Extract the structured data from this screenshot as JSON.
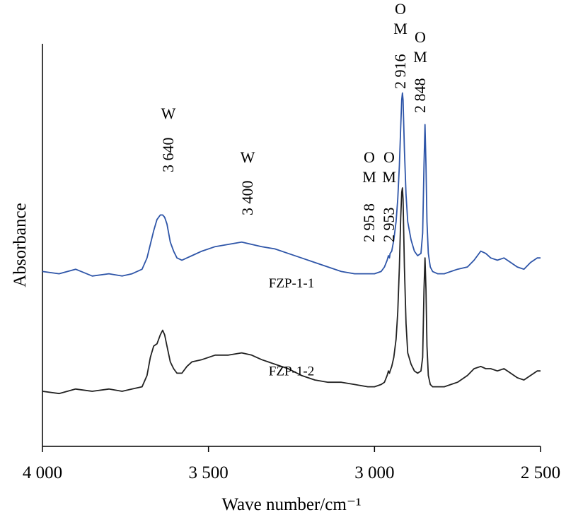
{
  "chart_data": {
    "type": "line",
    "title": "",
    "xlabel": "Wave number/cm⁻¹",
    "ylabel": "Absorbance",
    "x_reversed": true,
    "xlim": [
      4000,
      2500
    ],
    "x_ticks": [
      4000,
      3500,
      3000,
      2500
    ],
    "x_tick_labels": [
      "4 000",
      "3 500",
      "3 000",
      "2 500"
    ],
    "grid": false,
    "legend": "none",
    "series": [
      {
        "name": "FZP-1-1",
        "color": "#2e55a8",
        "x": [
          4000,
          3950,
          3900,
          3850,
          3800,
          3760,
          3730,
          3700,
          3685,
          3675,
          3665,
          3655,
          3645,
          3638,
          3632,
          3625,
          3615,
          3605,
          3595,
          3580,
          3565,
          3550,
          3520,
          3480,
          3440,
          3400,
          3370,
          3340,
          3300,
          3260,
          3220,
          3180,
          3140,
          3100,
          3060,
          3020,
          3000,
          2980,
          2970,
          2962,
          2958,
          2955,
          2953,
          2948,
          2942,
          2935,
          2930,
          2925,
          2921,
          2918,
          2916,
          2914,
          2910,
          2905,
          2900,
          2890,
          2880,
          2870,
          2860,
          2855,
          2851,
          2848,
          2845,
          2842,
          2838,
          2832,
          2825,
          2810,
          2790,
          2770,
          2750,
          2720,
          2700,
          2680,
          2665,
          2650,
          2630,
          2610,
          2590,
          2570,
          2550,
          2530,
          2510,
          2500
        ],
        "y": [
          0.08,
          0.07,
          0.09,
          0.06,
          0.07,
          0.06,
          0.07,
          0.09,
          0.14,
          0.2,
          0.26,
          0.31,
          0.33,
          0.33,
          0.32,
          0.29,
          0.21,
          0.17,
          0.14,
          0.13,
          0.14,
          0.15,
          0.17,
          0.19,
          0.2,
          0.21,
          0.2,
          0.19,
          0.18,
          0.16,
          0.14,
          0.12,
          0.1,
          0.08,
          0.07,
          0.07,
          0.07,
          0.08,
          0.1,
          0.13,
          0.15,
          0.14,
          0.16,
          0.17,
          0.22,
          0.3,
          0.4,
          0.55,
          0.72,
          0.84,
          0.87,
          0.84,
          0.62,
          0.42,
          0.3,
          0.22,
          0.17,
          0.15,
          0.16,
          0.25,
          0.55,
          0.73,
          0.55,
          0.3,
          0.16,
          0.1,
          0.08,
          0.07,
          0.07,
          0.08,
          0.09,
          0.1,
          0.13,
          0.17,
          0.16,
          0.14,
          0.13,
          0.14,
          0.12,
          0.1,
          0.09,
          0.12,
          0.14,
          0.14
        ]
      },
      {
        "name": "FZP-1-2",
        "color": "#222222",
        "x": [
          4000,
          3950,
          3900,
          3850,
          3800,
          3760,
          3730,
          3700,
          3685,
          3675,
          3665,
          3655,
          3645,
          3638,
          3632,
          3625,
          3615,
          3605,
          3595,
          3580,
          3565,
          3550,
          3520,
          3480,
          3440,
          3400,
          3370,
          3340,
          3300,
          3260,
          3220,
          3180,
          3140,
          3100,
          3060,
          3020,
          3000,
          2980,
          2970,
          2962,
          2958,
          2955,
          2953,
          2948,
          2942,
          2935,
          2930,
          2925,
          2921,
          2918,
          2916,
          2914,
          2910,
          2905,
          2900,
          2890,
          2880,
          2870,
          2860,
          2855,
          2851,
          2848,
          2845,
          2842,
          2838,
          2832,
          2825,
          2810,
          2790,
          2770,
          2750,
          2720,
          2700,
          2680,
          2665,
          2650,
          2630,
          2610,
          2590,
          2570,
          2550,
          2530,
          2510,
          2500
        ],
        "y": [
          -0.45,
          -0.46,
          -0.44,
          -0.45,
          -0.44,
          -0.45,
          -0.44,
          -0.43,
          -0.38,
          -0.3,
          -0.25,
          -0.24,
          -0.2,
          -0.18,
          -0.2,
          -0.25,
          -0.32,
          -0.35,
          -0.37,
          -0.37,
          -0.34,
          -0.32,
          -0.31,
          -0.29,
          -0.29,
          -0.28,
          -0.29,
          -0.31,
          -0.33,
          -0.35,
          -0.38,
          -0.4,
          -0.41,
          -0.41,
          -0.42,
          -0.43,
          -0.43,
          -0.42,
          -0.41,
          -0.38,
          -0.36,
          -0.37,
          -0.36,
          -0.34,
          -0.3,
          -0.22,
          -0.1,
          0.1,
          0.32,
          0.43,
          0.45,
          0.4,
          0.1,
          -0.15,
          -0.28,
          -0.33,
          -0.36,
          -0.37,
          -0.36,
          -0.3,
          0.0,
          0.14,
          0.0,
          -0.25,
          -0.38,
          -0.42,
          -0.43,
          -0.43,
          -0.43,
          -0.42,
          -0.41,
          -0.38,
          -0.35,
          -0.34,
          -0.35,
          -0.35,
          -0.36,
          -0.35,
          -0.37,
          -0.39,
          -0.4,
          -0.38,
          -0.36,
          -0.36
        ]
      }
    ],
    "series_labels": [
      {
        "series": 0,
        "text": "FZP-1-1",
        "x": 3250,
        "y": 0.01
      },
      {
        "series": 1,
        "text": "FZP-1-2",
        "x": 3250,
        "y": -0.38
      }
    ],
    "annotations": [
      {
        "letter": "W",
        "value": "3 640",
        "x": 3640
      },
      {
        "letter": "W",
        "value": "3 400",
        "x": 3400
      },
      {
        "letter": "O M",
        "value": "2 95 8",
        "x": 2958
      },
      {
        "letter": "O M",
        "value": "2 953",
        "x": 2953
      },
      {
        "letter": "O M",
        "value": "2 916",
        "x": 2916
      },
      {
        "letter": "O M",
        "value": "2 848",
        "x": 2848
      }
    ]
  }
}
